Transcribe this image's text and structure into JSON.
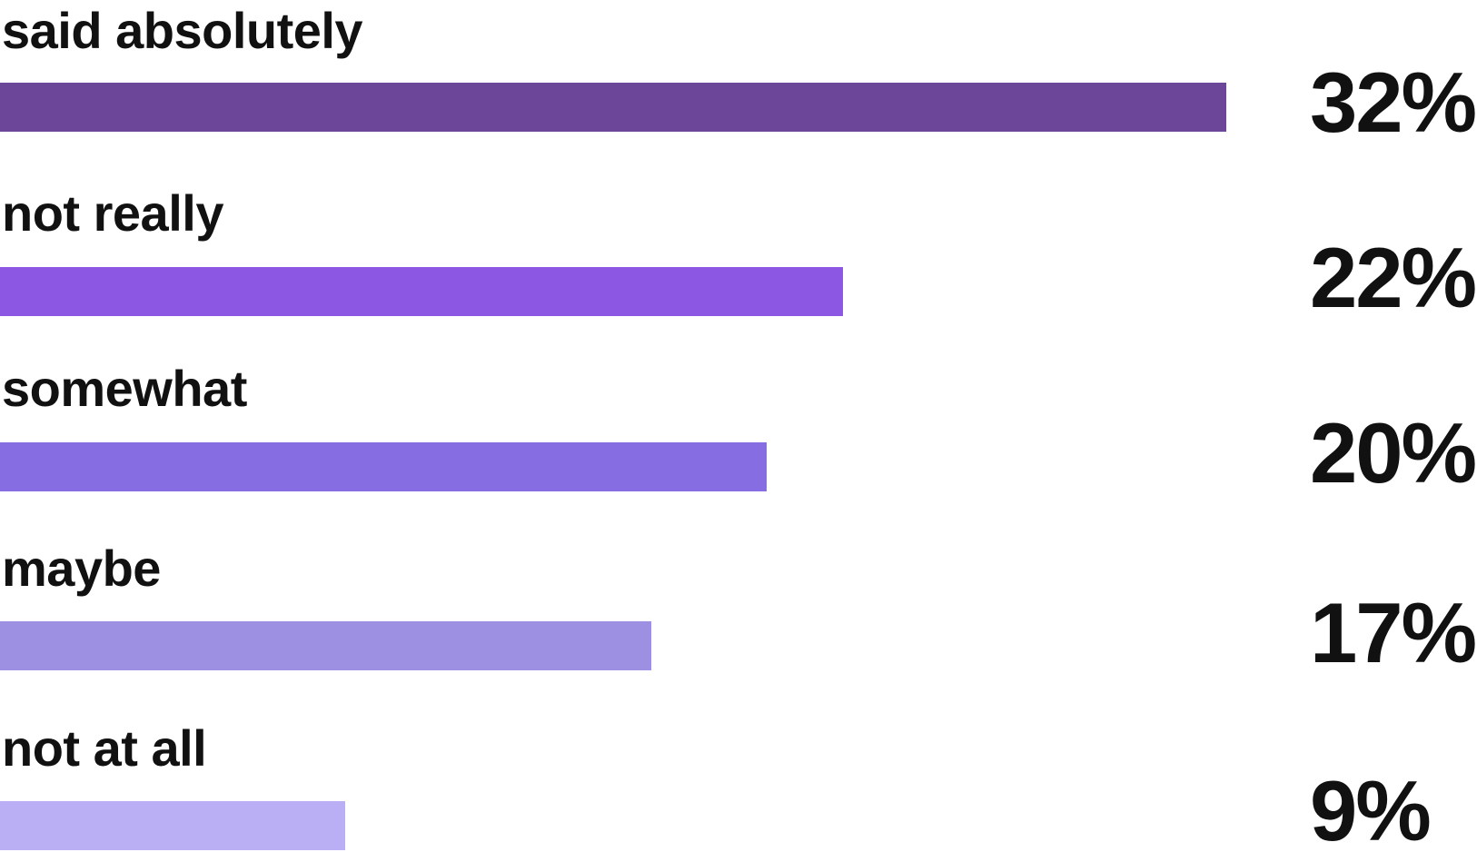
{
  "chart_data": {
    "type": "bar",
    "orientation": "horizontal",
    "title": "",
    "xlabel": "",
    "ylabel": "",
    "grid": false,
    "legend": "none",
    "xlim": [
      0,
      32
    ],
    "categories": [
      "said absolutely",
      "not really",
      "somewhat",
      "maybe",
      "not at all"
    ],
    "values": [
      32,
      22,
      20,
      17,
      9
    ],
    "value_labels": [
      "32%",
      "22%",
      "20%",
      "17%",
      "9%"
    ],
    "colors": [
      "#6B4699",
      "#8B57E3",
      "#876DE2",
      "#9D8FE1",
      "#BAAFF5"
    ]
  }
}
